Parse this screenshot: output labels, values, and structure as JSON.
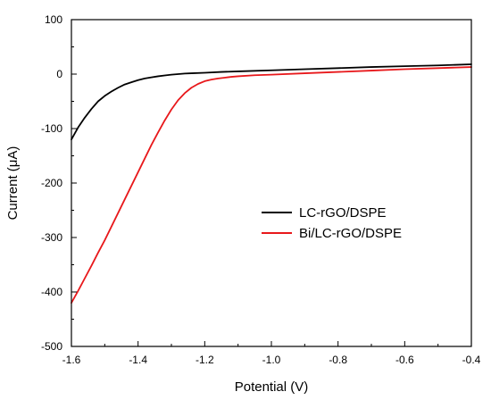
{
  "chart_data": {
    "type": "line",
    "title": "",
    "xlabel": "Potential (V)",
    "ylabel": "Current (μA)",
    "xlim": [
      -1.6,
      -0.4
    ],
    "ylim": [
      -500,
      100
    ],
    "xticks": [
      -1.6,
      -1.4,
      -1.2,
      -1.0,
      -0.8,
      -0.6,
      -0.4
    ],
    "xtick_labels": [
      "-1.6",
      "-1.4",
      "-1.2",
      "-1.0",
      "-0.8",
      "-0.6",
      "-0.4"
    ],
    "yticks": [
      100,
      0,
      -100,
      -200,
      -300,
      -400,
      -500
    ],
    "ytick_labels": [
      "100",
      "0",
      "-100",
      "-200",
      "-300",
      "-400",
      "-500"
    ],
    "grid": false,
    "legend_position": "center-right",
    "series": [
      {
        "name": "LC-rGO/DSPE",
        "color": "#000000",
        "points": [
          [
            -1.6,
            -120
          ],
          [
            -1.58,
            -98
          ],
          [
            -1.56,
            -80
          ],
          [
            -1.54,
            -64
          ],
          [
            -1.52,
            -50
          ],
          [
            -1.5,
            -40
          ],
          [
            -1.48,
            -32
          ],
          [
            -1.46,
            -25
          ],
          [
            -1.44,
            -19
          ],
          [
            -1.42,
            -15
          ],
          [
            -1.4,
            -11
          ],
          [
            -1.38,
            -8
          ],
          [
            -1.36,
            -6
          ],
          [
            -1.34,
            -4
          ],
          [
            -1.32,
            -2.5
          ],
          [
            -1.3,
            -1
          ],
          [
            -1.28,
            0
          ],
          [
            -1.26,
            1
          ],
          [
            -1.24,
            1.5
          ],
          [
            -1.2,
            2.5
          ],
          [
            -1.15,
            4
          ],
          [
            -1.1,
            5
          ],
          [
            -1.0,
            7
          ],
          [
            -0.9,
            9
          ],
          [
            -0.8,
            11
          ],
          [
            -0.7,
            13
          ],
          [
            -0.6,
            14.5
          ],
          [
            -0.5,
            16
          ],
          [
            -0.4,
            18
          ]
        ]
      },
      {
        "name": "Bi/LC-rGO/DSPE",
        "color": "#e8181b",
        "points": [
          [
            -1.6,
            -420
          ],
          [
            -1.58,
            -398
          ],
          [
            -1.56,
            -375
          ],
          [
            -1.54,
            -352
          ],
          [
            -1.52,
            -328
          ],
          [
            -1.5,
            -305
          ],
          [
            -1.48,
            -280
          ],
          [
            -1.46,
            -255
          ],
          [
            -1.44,
            -230
          ],
          [
            -1.42,
            -205
          ],
          [
            -1.4,
            -180
          ],
          [
            -1.38,
            -155
          ],
          [
            -1.36,
            -130
          ],
          [
            -1.34,
            -107
          ],
          [
            -1.32,
            -85
          ],
          [
            -1.3,
            -65
          ],
          [
            -1.28,
            -48
          ],
          [
            -1.26,
            -35
          ],
          [
            -1.24,
            -25
          ],
          [
            -1.22,
            -18
          ],
          [
            -1.2,
            -13
          ],
          [
            -1.18,
            -10
          ],
          [
            -1.16,
            -8
          ],
          [
            -1.14,
            -6.5
          ],
          [
            -1.12,
            -5
          ],
          [
            -1.1,
            -4
          ],
          [
            -1.05,
            -2
          ],
          [
            -1.0,
            -1
          ],
          [
            -0.9,
            1.5
          ],
          [
            -0.8,
            4
          ],
          [
            -0.7,
            6.5
          ],
          [
            -0.6,
            9
          ],
          [
            -0.5,
            11
          ],
          [
            -0.4,
            13
          ]
        ]
      }
    ]
  }
}
